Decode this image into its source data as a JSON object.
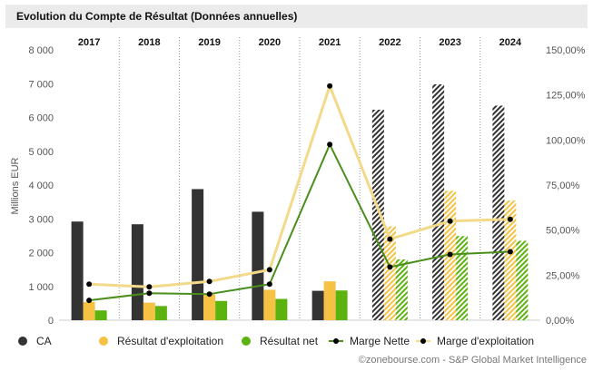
{
  "title": "Evolution du Compte de Résultat (Données annuelles)",
  "source": "©zonebourse.com - S&P Global Market Intelligence",
  "colors": {
    "ca": "#333333",
    "resultat_exploitation": "#f6c244",
    "resultat_net": "#5cb30f",
    "marge_nette_line": "#4a8f1c",
    "marge_exploitation_line": "#f3d98a",
    "marker": "#000000",
    "title_bg": "#ebebeb",
    "axis_text": "#555555"
  },
  "chart_data": {
    "type": "bar",
    "categories": [
      "2017",
      "2018",
      "2019",
      "2020",
      "2021",
      "2022",
      "2023",
      "2024"
    ],
    "estimated_from_index": 5,
    "ylabel": "Millions EUR",
    "ylim": [
      0,
      8000
    ],
    "y_ticks": [
      "0",
      "1 000",
      "2 000",
      "3 000",
      "4 000",
      "5 000",
      "6 000",
      "7 000",
      "8 000"
    ],
    "y2lim": [
      0,
      150
    ],
    "y2_ticks": [
      "0,00%",
      "25,00%",
      "50,00%",
      "75,00%",
      "100,00%",
      "125,00%",
      "150,00%"
    ],
    "series": [
      {
        "name": "CA",
        "kind": "bar",
        "values": [
          2920,
          2840,
          3880,
          3210,
          870,
          6230,
          6980,
          6350
        ]
      },
      {
        "name": "Résultat d'exploitation",
        "kind": "bar",
        "values": [
          540,
          520,
          760,
          900,
          1150,
          2780,
          3830,
          3540
        ]
      },
      {
        "name": "Résultat net",
        "kind": "bar",
        "values": [
          290,
          420,
          570,
          630,
          880,
          1800,
          2490,
          2350
        ]
      },
      {
        "name": "Marge Nette",
        "kind": "line",
        "axis": "right",
        "values": [
          11,
          15,
          14.5,
          20,
          97.5,
          29.5,
          36.5,
          38
        ]
      },
      {
        "name": "Marge d'exploitation",
        "kind": "line",
        "axis": "right",
        "values": [
          20,
          18.5,
          21.5,
          28,
          130,
          45,
          55,
          56
        ]
      }
    ],
    "legend_position": "bottom"
  }
}
